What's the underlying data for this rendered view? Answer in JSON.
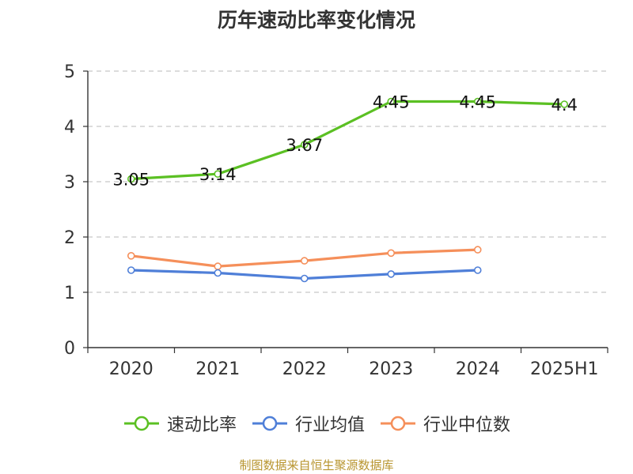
{
  "chart_data": {
    "type": "line",
    "title": "历年速动比率变化情况",
    "categories": [
      "2020",
      "2021",
      "2022",
      "2023",
      "2024",
      "2025H1"
    ],
    "ylim": [
      0,
      5
    ],
    "yticks": [
      "0",
      "1",
      "2",
      "3",
      "4",
      "5"
    ],
    "grid": true,
    "legend_position": "bottom",
    "series": [
      {
        "name": "速动比率",
        "color": "#5bc023",
        "values": [
          3.05,
          3.14,
          3.67,
          4.45,
          4.45,
          4.4
        ],
        "labels": [
          "3.05",
          "3.14",
          "3.67",
          "4.45",
          "4.45",
          "4.4"
        ]
      },
      {
        "name": "行业均值",
        "color": "#4f7fd8",
        "values": [
          1.4,
          1.35,
          1.25,
          1.33,
          1.4,
          null
        ]
      },
      {
        "name": "行业中位数",
        "color": "#f58f5a",
        "values": [
          1.66,
          1.47,
          1.57,
          1.71,
          1.77,
          null
        ]
      }
    ],
    "source": "制图数据来自恒生聚源数据库"
  }
}
